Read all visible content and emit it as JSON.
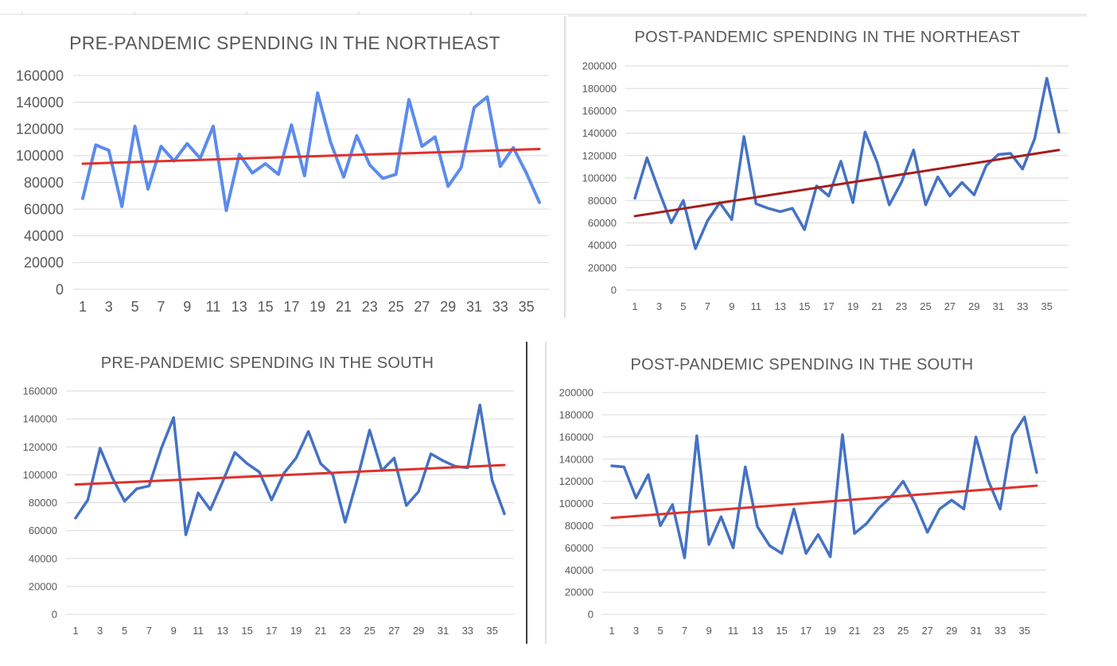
{
  "chart_data": [
    {
      "type": "line",
      "title": "PRE-PANDEMIC SPENDING IN THE NORTHEAST",
      "xlabel": "",
      "ylabel": "",
      "x": [
        1,
        2,
        3,
        4,
        5,
        6,
        7,
        8,
        9,
        10,
        11,
        12,
        13,
        14,
        15,
        16,
        17,
        18,
        19,
        20,
        21,
        22,
        23,
        24,
        25,
        26,
        27,
        28,
        29,
        30,
        31,
        32,
        33,
        34,
        35,
        36
      ],
      "x_tick_labels": [
        "1",
        "3",
        "5",
        "7",
        "9",
        "11",
        "13",
        "15",
        "17",
        "19",
        "21",
        "23",
        "25",
        "27",
        "29",
        "31",
        "33",
        "35"
      ],
      "y_ticks": [
        0,
        20000,
        40000,
        60000,
        80000,
        100000,
        120000,
        140000,
        160000
      ],
      "ylim": [
        0,
        160000
      ],
      "grid": true,
      "series": [
        {
          "values": [
            68000,
            108000,
            104000,
            62000,
            122000,
            75000,
            107000,
            96000,
            109000,
            98000,
            122000,
            59000,
            101000,
            87000,
            94000,
            86000,
            123000,
            85000,
            147000,
            110000,
            84000,
            115000,
            93000,
            83000,
            86000,
            142000,
            107000,
            114000,
            77000,
            91000,
            136000,
            144000,
            92000,
            106000,
            87000,
            65000
          ],
          "color": "#5b8bed"
        },
        {
          "trend": [
            94000,
            105000
          ],
          "color": "#e0302a"
        }
      ]
    },
    {
      "type": "line",
      "title": "POST-PANDEMIC SPENDING IN THE NORTHEAST",
      "xlabel": "",
      "ylabel": "",
      "x": [
        1,
        2,
        3,
        4,
        5,
        6,
        7,
        8,
        9,
        10,
        11,
        12,
        13,
        14,
        15,
        16,
        17,
        18,
        19,
        20,
        21,
        22,
        23,
        24,
        25,
        26,
        27,
        28,
        29,
        30,
        31,
        32,
        33,
        34,
        35,
        36
      ],
      "x_tick_labels": [
        "1",
        "3",
        "5",
        "7",
        "9",
        "11",
        "13",
        "15",
        "17",
        "19",
        "21",
        "23",
        "25",
        "27",
        "29",
        "31",
        "33",
        "35"
      ],
      "y_ticks": [
        0,
        20000,
        40000,
        60000,
        80000,
        100000,
        120000,
        140000,
        160000,
        180000,
        200000
      ],
      "ylim": [
        0,
        200000
      ],
      "grid": true,
      "series": [
        {
          "values": [
            82000,
            118000,
            88000,
            60000,
            80000,
            37000,
            62000,
            78000,
            63000,
            137000,
            77000,
            73000,
            70000,
            73000,
            54000,
            93000,
            84000,
            115000,
            78000,
            141000,
            114000,
            76000,
            96000,
            125000,
            76000,
            101000,
            84000,
            96000,
            85000,
            111000,
            121000,
            122000,
            108000,
            135000,
            189000,
            141000
          ],
          "color": "#4472c4"
        },
        {
          "trend": [
            66000,
            125000
          ],
          "color": "#a61c1c"
        }
      ]
    },
    {
      "type": "line",
      "title": "PRE-PANDEMIC SPENDING IN THE SOUTH",
      "xlabel": "",
      "ylabel": "",
      "x": [
        1,
        2,
        3,
        4,
        5,
        6,
        7,
        8,
        9,
        10,
        11,
        12,
        13,
        14,
        15,
        16,
        17,
        18,
        19,
        20,
        21,
        22,
        23,
        24,
        25,
        26,
        27,
        28,
        29,
        30,
        31,
        32,
        33,
        34,
        35,
        36
      ],
      "x_tick_labels": [
        "1",
        "3",
        "5",
        "7",
        "9",
        "11",
        "13",
        "15",
        "17",
        "19",
        "21",
        "23",
        "25",
        "27",
        "29",
        "31",
        "33",
        "35"
      ],
      "y_ticks": [
        0,
        20000,
        40000,
        60000,
        80000,
        100000,
        120000,
        140000,
        160000
      ],
      "ylim": [
        0,
        160000
      ],
      "grid": true,
      "series": [
        {
          "values": [
            69000,
            82000,
            119000,
            98000,
            81000,
            90000,
            92000,
            119000,
            141000,
            57000,
            87000,
            75000,
            95000,
            116000,
            108000,
            102000,
            82000,
            101000,
            112000,
            131000,
            108000,
            100000,
            66000,
            97000,
            132000,
            103000,
            112000,
            78000,
            88000,
            115000,
            110000,
            106000,
            105000,
            150000,
            96000,
            72000
          ],
          "color": "#4472c4"
        },
        {
          "trend": [
            93000,
            107000
          ],
          "color": "#e0302a"
        }
      ]
    },
    {
      "type": "line",
      "title": "POST-PANDEMIC SPENDING IN THE SOUTH",
      "xlabel": "",
      "ylabel": "",
      "x": [
        1,
        2,
        3,
        4,
        5,
        6,
        7,
        8,
        9,
        10,
        11,
        12,
        13,
        14,
        15,
        16,
        17,
        18,
        19,
        20,
        21,
        22,
        23,
        24,
        25,
        26,
        27,
        28,
        29,
        30,
        31,
        32,
        33,
        34,
        35,
        36
      ],
      "x_tick_labels": [
        "1",
        "3",
        "5",
        "7",
        "9",
        "11",
        "13",
        "15",
        "17",
        "19",
        "21",
        "23",
        "25",
        "27",
        "29",
        "31",
        "33",
        "35"
      ],
      "y_ticks": [
        0,
        20000,
        40000,
        60000,
        80000,
        100000,
        120000,
        140000,
        160000,
        180000,
        200000
      ],
      "ylim": [
        0,
        200000
      ],
      "grid": true,
      "series": [
        {
          "values": [
            134000,
            133000,
            105000,
            126000,
            80000,
            99000,
            51000,
            161000,
            63000,
            88000,
            60000,
            133000,
            79000,
            62000,
            55000,
            95000,
            55000,
            72000,
            52000,
            162000,
            73000,
            82000,
            96000,
            106000,
            120000,
            100000,
            74000,
            95000,
            103000,
            95000,
            160000,
            121000,
            95000,
            161000,
            178000,
            128000
          ],
          "color": "#4472c4"
        },
        {
          "trend": [
            87000,
            116000
          ],
          "color": "#e0302a"
        }
      ]
    }
  ]
}
